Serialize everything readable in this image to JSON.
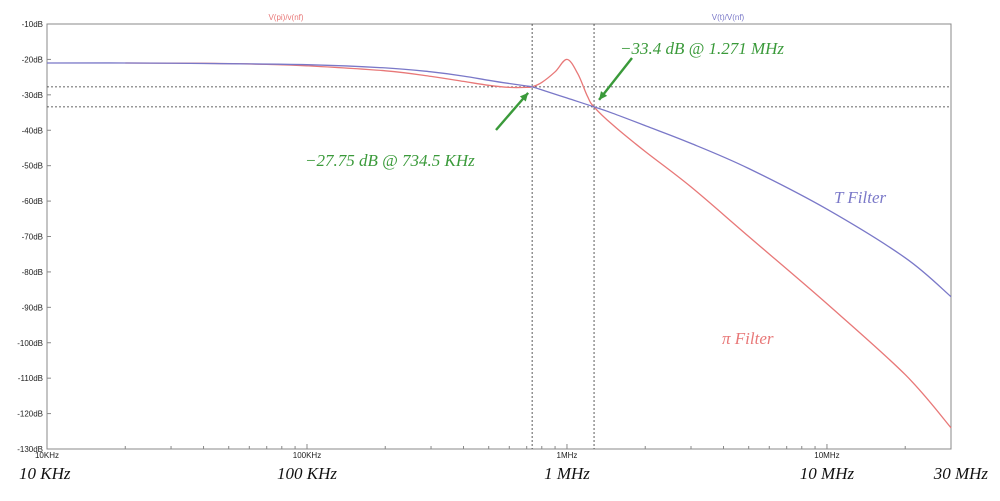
{
  "colors": {
    "pi": "#e87878",
    "t": "#7a78c8",
    "annotation": "#3a9a3a",
    "axis": "#888888",
    "cursor": "#333333"
  },
  "chart_data": {
    "type": "line",
    "x_scale": "log",
    "xlim_hz": [
      10000,
      30000000
    ],
    "ylim": [
      -130,
      -10
    ],
    "y_ticks": [
      "-10dB",
      "-20dB",
      "-30dB",
      "-40dB",
      "-50dB",
      "-60dB",
      "-70dB",
      "-80dB",
      "-90dB",
      "-100dB",
      "-110dB",
      "-120dB",
      "-130dB"
    ],
    "x_ticks_small": [
      {
        "hz": 10000,
        "label": "10KHz"
      },
      {
        "hz": 100000,
        "label": "100KHz"
      },
      {
        "hz": 1000000,
        "label": "1MHz"
      },
      {
        "hz": 10000000,
        "label": "10MHz"
      }
    ],
    "x_ticks_large": [
      {
        "hz": 10000,
        "label": "10 KHz"
      },
      {
        "hz": 100000,
        "label": "100 KHz"
      },
      {
        "hz": 1000000,
        "label": "1 MHz"
      },
      {
        "hz": 10000000,
        "label": "10 MHz"
      },
      {
        "hz": 30000000,
        "label": "30 MHz"
      }
    ],
    "trace_labels": {
      "pi": "V(pi)/v(nf)",
      "t": "V(t)/V(nf)"
    },
    "series": [
      {
        "key": "pi",
        "name": "π Filter",
        "x_hz": [
          20000,
          40000,
          70000,
          100000,
          200000,
          300000,
          400000,
          500000,
          600000,
          700000,
          734500,
          800000,
          900000,
          1000000,
          1100000,
          1200000,
          1271000,
          1500000,
          2000000,
          3000000,
          5000000,
          10000000,
          20000000,
          30000000
        ],
        "y_db": [
          -21,
          -21.1,
          -21.4,
          -21.8,
          -23.2,
          -24.8,
          -26.2,
          -27.3,
          -27.9,
          -27.9,
          -27.75,
          -26.5,
          -23.5,
          -20,
          -24,
          -30.5,
          -33.4,
          -38.5,
          -46,
          -56,
          -70,
          -89,
          -109,
          -124
        ]
      },
      {
        "key": "t",
        "name": "T Filter",
        "x_hz": [
          10000,
          20000,
          50000,
          100000,
          200000,
          300000,
          400000,
          500000,
          600000,
          700000,
          734500,
          800000,
          1000000,
          1271000,
          1500000,
          2000000,
          3000000,
          5000000,
          10000000,
          20000000,
          30000000
        ],
        "y_db": [
          -21,
          -21,
          -21.2,
          -21.5,
          -22.4,
          -23.5,
          -24.7,
          -25.9,
          -26.8,
          -27.5,
          -27.75,
          -28.6,
          -30.9,
          -33.4,
          -35.2,
          -38.7,
          -43.7,
          -50.8,
          -62.3,
          -76,
          -87
        ]
      }
    ],
    "annotations": [
      {
        "text": "−33.4 dB @ 1.271 MHz",
        "x_hz": 1271000,
        "y_db": -33.4
      },
      {
        "text": "−27.75 dB @ 734.5 KHz",
        "x_hz": 734500,
        "y_db": -27.75
      }
    ],
    "cursors": [
      {
        "x_hz": 734500,
        "y_db": -27.75
      },
      {
        "x_hz": 1271000,
        "y_db": -33.4
      }
    ],
    "grid": false
  }
}
